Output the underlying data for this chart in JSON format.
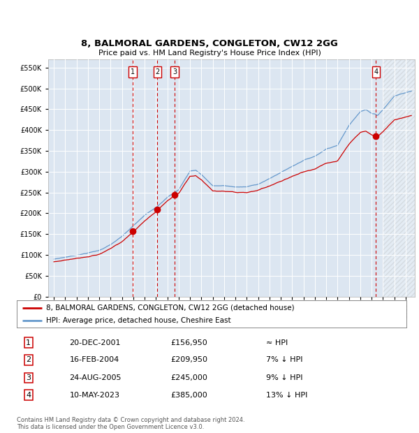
{
  "title": "8, BALMORAL GARDENS, CONGLETON, CW12 2GG",
  "subtitle": "Price paid vs. HM Land Registry's House Price Index (HPI)",
  "legend_line1": "8, BALMORAL GARDENS, CONGLETON, CW12 2GG (detached house)",
  "legend_line2": "HPI: Average price, detached house, Cheshire East",
  "sale_year_nums": [
    2001.958,
    2004.125,
    2005.646,
    2023.375
  ],
  "sale_prices": [
    156950,
    209950,
    245000,
    385000
  ],
  "sale_labels": [
    "1",
    "2",
    "3",
    "4"
  ],
  "table_rows": [
    [
      "1",
      "20-DEC-2001",
      "£156,950",
      "≈ HPI"
    ],
    [
      "2",
      "16-FEB-2004",
      "£209,950",
      "7% ↓ HPI"
    ],
    [
      "3",
      "24-AUG-2005",
      "£245,000",
      "9% ↓ HPI"
    ],
    [
      "4",
      "10-MAY-2023",
      "£385,000",
      "13% ↓ HPI"
    ]
  ],
  "footnote": "Contains HM Land Registry data © Crown copyright and database right 2024.\nThis data is licensed under the Open Government Licence v3.0.",
  "red_line_color": "#cc0000",
  "blue_line_color": "#6699cc",
  "plot_bg_color": "#dce6f1",
  "vline_color": "#cc0000",
  "ylim": [
    0,
    570000
  ],
  "yticks": [
    0,
    50000,
    100000,
    150000,
    200000,
    250000,
    300000,
    350000,
    400000,
    450000,
    500000,
    550000
  ],
  "hatch_start": 2024.0,
  "xlim_left": 1994.5,
  "xlim_right": 2026.8
}
